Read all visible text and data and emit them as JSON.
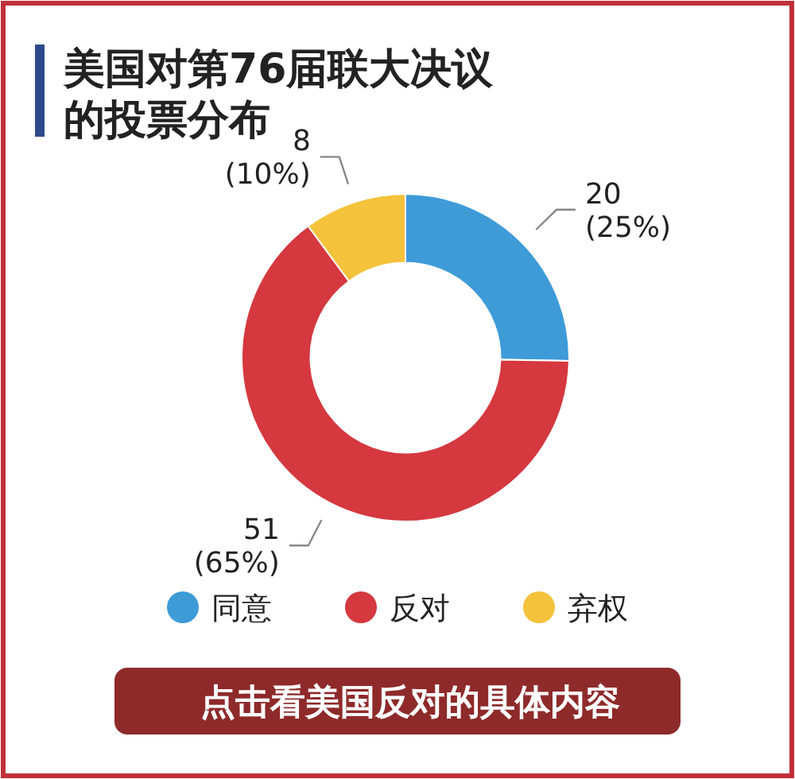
{
  "chart_data": {
    "type": "donut",
    "title": "美国对第76届联大决议的投票分布",
    "categories": [
      "同意",
      "反对",
      "弃权"
    ],
    "values": [
      20,
      51,
      8
    ],
    "colors": [
      "#3e9bd8",
      "#d5383f",
      "#f5c23c"
    ],
    "value_labels": [
      "20\n(25%)",
      "51\n(65%)",
      "8\n(10%)"
    ],
    "legend": "bottom",
    "annotations": [
      "点击看美国反对的具体内容"
    ]
  }
}
